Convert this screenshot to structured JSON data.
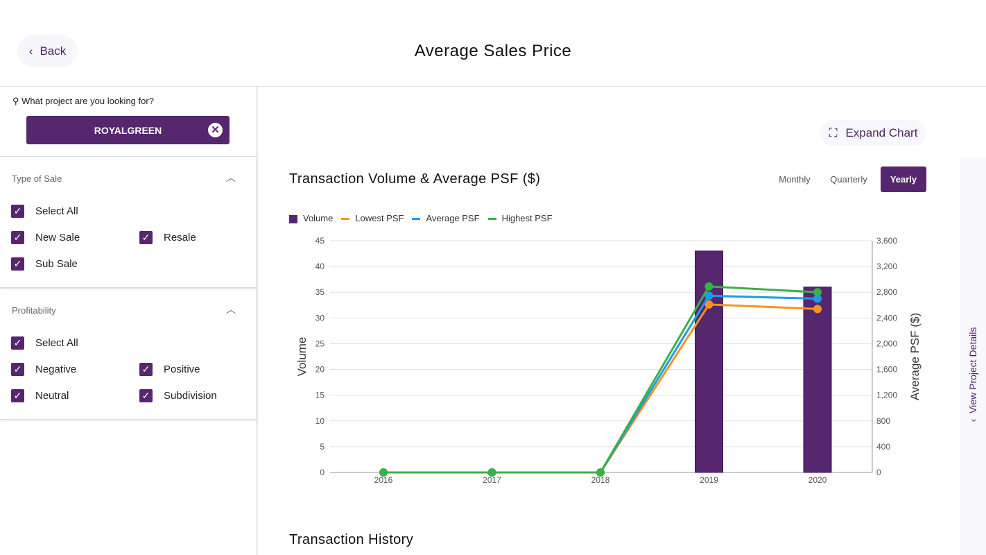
{
  "header": {
    "back_label": "Back",
    "title": "Average Sales Price"
  },
  "search": {
    "label": "What project are you looking for?",
    "value": "ROYALGREEN"
  },
  "filters": [
    {
      "title": "Type of Sale",
      "options": [
        "Select All",
        "New Sale",
        "Resale",
        "Sub Sale"
      ]
    },
    {
      "title": "Profitability",
      "options": [
        "Select All",
        "Negative",
        "Positive",
        "Neutral",
        "Subdivision"
      ]
    }
  ],
  "expand_label": "Expand Chart",
  "periods": [
    "Monthly",
    "Quarterly",
    "Yearly"
  ],
  "active_period": "Yearly",
  "side_tab_label": "View Project Details",
  "history_title": "Transaction History",
  "colors": {
    "volume": "#56266e",
    "lowest": "#f7941d",
    "average": "#1e9bf0",
    "highest": "#3ab04a"
  },
  "chart_data": {
    "type": "bar+line",
    "title": "Transaction Volume & Average PSF ($)",
    "categories": [
      "2016",
      "2017",
      "2018",
      "2019",
      "2020"
    ],
    "ylabel": "Volume",
    "ylim": [
      0,
      45
    ],
    "yticks": [
      0,
      5,
      10,
      15,
      20,
      25,
      30,
      35,
      40,
      45
    ],
    "y2label": "Average PSF ($)",
    "y2lim": [
      0,
      3600
    ],
    "y2ticks": [
      "0",
      "400",
      "800",
      "1,200",
      "1,600",
      "2,000",
      "2,400",
      "2,800",
      "3,200",
      "3,600"
    ],
    "legend": [
      "Volume",
      "Lowest PSF",
      "Average PSF",
      "Highest PSF"
    ],
    "legend_position": "top-left",
    "series": [
      {
        "name": "Volume",
        "axis": "left",
        "type": "bar",
        "values": [
          0,
          0,
          0,
          43,
          36
        ]
      },
      {
        "name": "Lowest PSF",
        "axis": "right",
        "type": "line",
        "values": [
          0,
          0,
          0,
          2610,
          2540
        ]
      },
      {
        "name": "Average PSF",
        "axis": "right",
        "type": "line",
        "values": [
          0,
          0,
          0,
          2745,
          2700
        ]
      },
      {
        "name": "Highest PSF",
        "axis": "right",
        "type": "line",
        "values": [
          0,
          0,
          0,
          2890,
          2800
        ]
      }
    ]
  }
}
